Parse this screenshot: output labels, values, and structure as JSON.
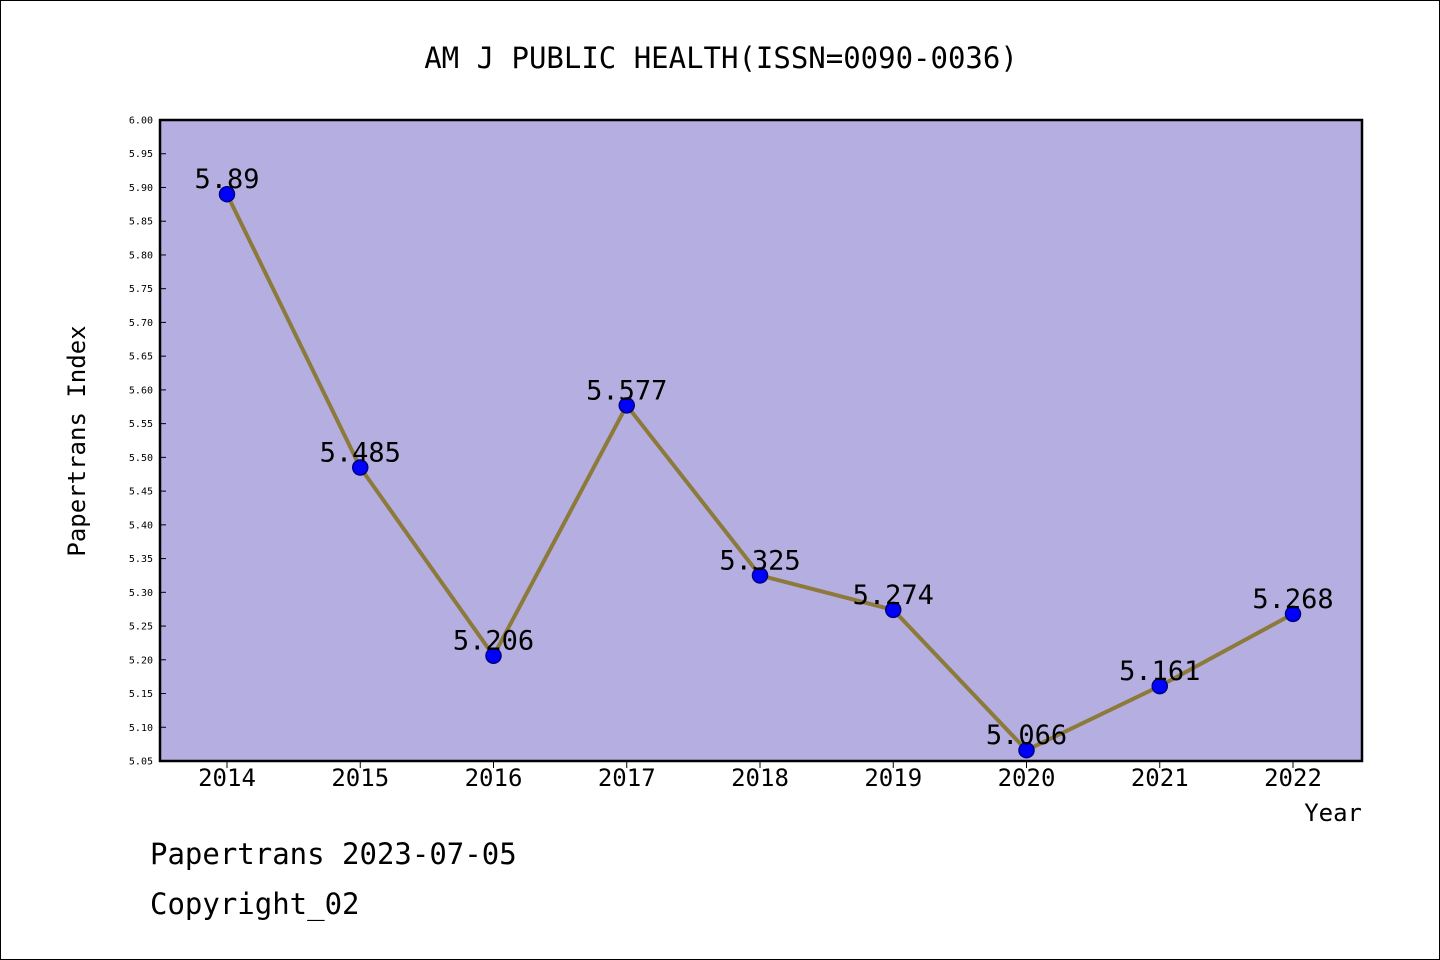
{
  "chart_data": {
    "type": "line",
    "title": "AM J PUBLIC HEALTH(ISSN=0090-0036)",
    "xlabel": "Year",
    "ylabel": "Papertrans Index",
    "categories": [
      "2014",
      "2015",
      "2016",
      "2017",
      "2018",
      "2019",
      "2020",
      "2021",
      "2022"
    ],
    "series": [
      {
        "values": [
          5.89,
          5.485,
          5.206,
          5.577,
          5.325,
          5.274,
          5.066,
          5.161,
          5.268
        ],
        "labels": [
          "5.89",
          "5.485",
          "5.206",
          "5.577",
          "5.325",
          "5.274",
          "5.066",
          "5.161",
          "5.268"
        ]
      }
    ],
    "ylim": [
      5.05,
      6.0
    ],
    "yticks": [
      "5.05",
      "5.10",
      "5.15",
      "5.20",
      "5.25",
      "5.30",
      "5.35",
      "5.40",
      "5.45",
      "5.50",
      "5.55",
      "5.60",
      "5.65",
      "5.70",
      "5.75",
      "5.80",
      "5.85",
      "5.90",
      "5.95",
      "6.00"
    ],
    "grid": false,
    "legend": "none",
    "colors": {
      "plot_background": "#b5aee1",
      "line": "#8c7a3a",
      "marker": "#0000ff",
      "marker_edge": "#000080",
      "frame": "#000000"
    }
  },
  "footer": {
    "date_line": "Papertrans 2023-07-05",
    "copyright_line": "Copyright_02"
  }
}
